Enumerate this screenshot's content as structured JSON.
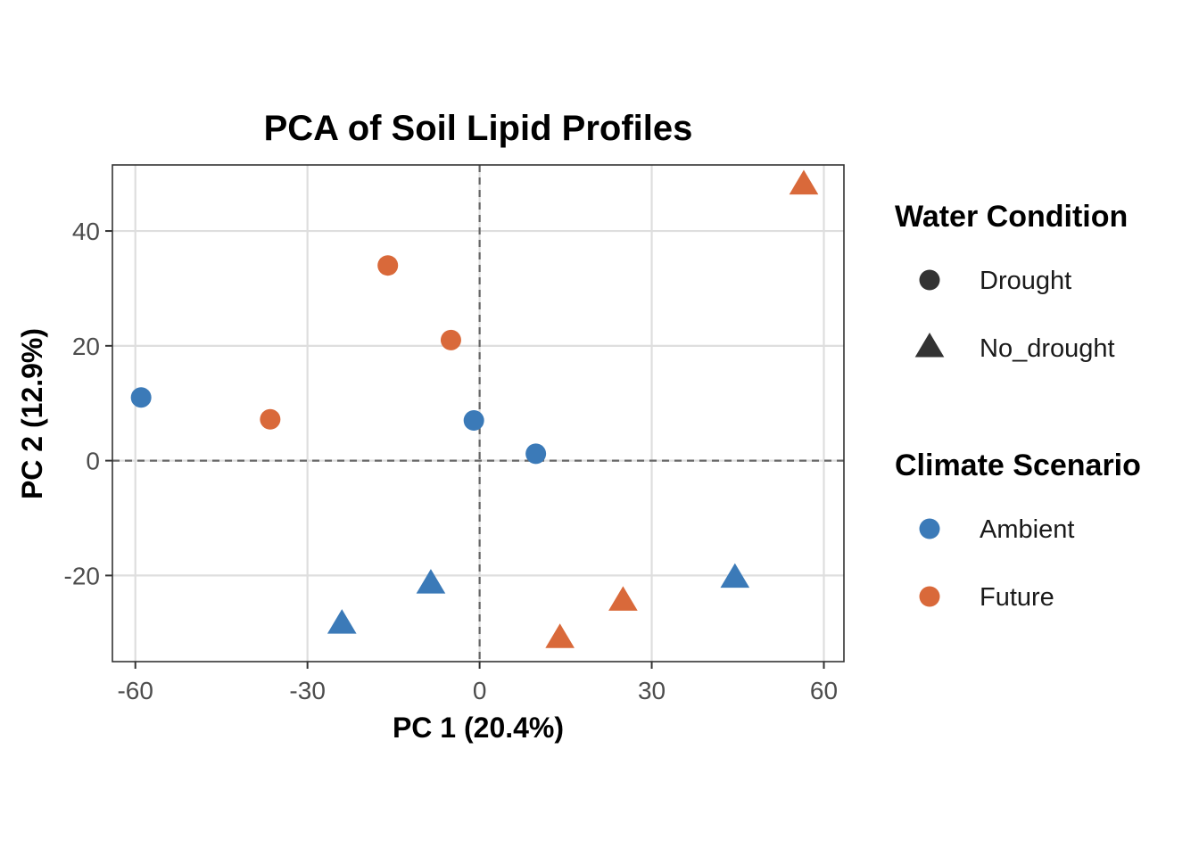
{
  "chart_data": {
    "type": "scatter",
    "title": "PCA of Soil Lipid Profiles",
    "xlabel": "PC 1 (20.4%)",
    "ylabel": "PC 2 (12.9%)",
    "xlim": [
      -64,
      63.5
    ],
    "ylim": [
      -35,
      51.5
    ],
    "x_ticks": [
      -60,
      -30,
      0,
      30,
      60
    ],
    "y_ticks": [
      -20,
      0,
      20,
      40
    ],
    "x_tick_labels": [
      "-60",
      "-30",
      "0",
      "30",
      "60"
    ],
    "y_tick_labels": [
      "-20",
      "0",
      "20",
      "40"
    ],
    "reference_lines": {
      "x": 0,
      "y": 0,
      "style": "dashed"
    },
    "grid": true,
    "legend_position": "right",
    "legends": [
      {
        "title": "Water Condition",
        "encoding": "shape",
        "items": [
          {
            "label": "Drought",
            "shape": "circle"
          },
          {
            "label": "No_drought",
            "shape": "triangle"
          }
        ]
      },
      {
        "title": "Climate Scenario",
        "encoding": "color",
        "items": [
          {
            "label": "Ambient",
            "color": "#3B7AB8"
          },
          {
            "label": "Future",
            "color": "#D9693A"
          }
        ]
      }
    ],
    "points": [
      {
        "x": -59,
        "y": 11,
        "water": "Drought",
        "climate": "Ambient"
      },
      {
        "x": -1,
        "y": 7,
        "water": "Drought",
        "climate": "Ambient"
      },
      {
        "x": 9.8,
        "y": 1.2,
        "water": "Drought",
        "climate": "Ambient"
      },
      {
        "x": -16,
        "y": 34,
        "water": "Drought",
        "climate": "Future"
      },
      {
        "x": -5,
        "y": 21,
        "water": "Drought",
        "climate": "Future"
      },
      {
        "x": -36.5,
        "y": 7.2,
        "water": "Drought",
        "climate": "Future"
      },
      {
        "x": -24,
        "y": -28.5,
        "water": "No_drought",
        "climate": "Ambient"
      },
      {
        "x": -8.5,
        "y": -21.5,
        "water": "No_drought",
        "climate": "Ambient"
      },
      {
        "x": 44.5,
        "y": -20.5,
        "water": "No_drought",
        "climate": "Ambient"
      },
      {
        "x": 14,
        "y": -31,
        "water": "No_drought",
        "climate": "Future"
      },
      {
        "x": 25,
        "y": -24.5,
        "water": "No_drought",
        "climate": "Future"
      },
      {
        "x": 56.5,
        "y": 48,
        "water": "No_drought",
        "climate": "Future"
      }
    ]
  }
}
